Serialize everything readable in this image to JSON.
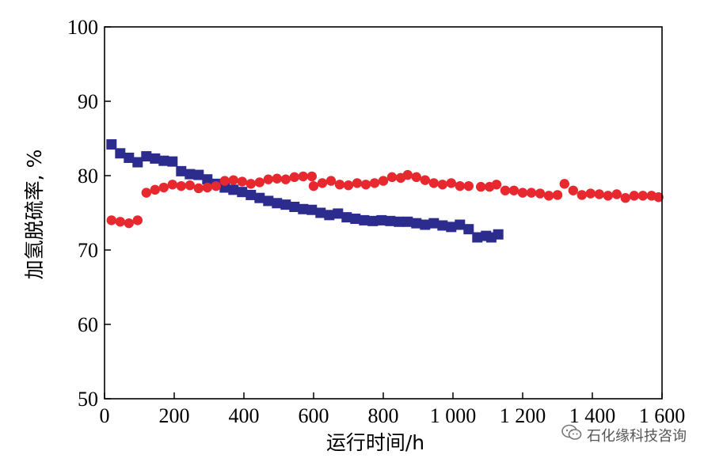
{
  "chart_data": {
    "type": "scatter",
    "title": "",
    "xlabel": "运行时间/h",
    "ylabel": "加氢脱硫率, %",
    "xlim": [
      0,
      1600
    ],
    "ylim": [
      50,
      100
    ],
    "xticks": [
      0,
      200,
      400,
      600,
      800,
      1000,
      1200,
      1400,
      1600
    ],
    "xtick_labels": [
      "0",
      "200",
      "400",
      "600",
      "800",
      "1 000",
      "1 200",
      "1 400",
      "1 600"
    ],
    "yticks": [
      50,
      60,
      70,
      80,
      90,
      100
    ],
    "ytick_labels": [
      "50",
      "60",
      "70",
      "80",
      "90",
      "100"
    ],
    "grid": false,
    "legend": "none",
    "series": [
      {
        "marker": "square",
        "color": "#2b2c8e",
        "points": [
          [
            20,
            84.2
          ],
          [
            45,
            83.0
          ],
          [
            70,
            82.4
          ],
          [
            95,
            81.8
          ],
          [
            120,
            82.6
          ],
          [
            145,
            82.3
          ],
          [
            170,
            82.0
          ],
          [
            195,
            81.9
          ],
          [
            220,
            80.6
          ],
          [
            245,
            80.2
          ],
          [
            270,
            80.1
          ],
          [
            295,
            79.5
          ],
          [
            320,
            78.9
          ],
          [
            345,
            78.4
          ],
          [
            370,
            78.1
          ],
          [
            395,
            77.8
          ],
          [
            420,
            77.4
          ],
          [
            445,
            77.0
          ],
          [
            470,
            76.6
          ],
          [
            495,
            76.3
          ],
          [
            520,
            76.1
          ],
          [
            545,
            75.8
          ],
          [
            570,
            75.5
          ],
          [
            595,
            75.4
          ],
          [
            620,
            75.0
          ],
          [
            645,
            74.7
          ],
          [
            670,
            74.9
          ],
          [
            695,
            74.4
          ],
          [
            720,
            74.2
          ],
          [
            745,
            74.0
          ],
          [
            770,
            73.9
          ],
          [
            795,
            74.0
          ],
          [
            820,
            73.9
          ],
          [
            845,
            73.8
          ],
          [
            870,
            73.8
          ],
          [
            895,
            73.6
          ],
          [
            920,
            73.4
          ],
          [
            945,
            73.6
          ],
          [
            970,
            73.3
          ],
          [
            995,
            73.1
          ],
          [
            1020,
            73.4
          ],
          [
            1045,
            72.8
          ],
          [
            1070,
            71.7
          ],
          [
            1095,
            71.9
          ],
          [
            1110,
            71.7
          ],
          [
            1130,
            72.1
          ]
        ]
      },
      {
        "marker": "circle",
        "color": "#e8282f",
        "points": [
          [
            20,
            74.0
          ],
          [
            45,
            73.8
          ],
          [
            70,
            73.6
          ],
          [
            95,
            74.0
          ],
          [
            120,
            77.7
          ],
          [
            145,
            78.1
          ],
          [
            170,
            78.4
          ],
          [
            195,
            78.8
          ],
          [
            220,
            78.6
          ],
          [
            245,
            78.7
          ],
          [
            270,
            78.3
          ],
          [
            295,
            78.4
          ],
          [
            320,
            78.6
          ],
          [
            345,
            79.3
          ],
          [
            370,
            79.4
          ],
          [
            395,
            79.2
          ],
          [
            420,
            78.9
          ],
          [
            445,
            79.1
          ],
          [
            470,
            79.5
          ],
          [
            495,
            79.6
          ],
          [
            520,
            79.5
          ],
          [
            545,
            79.8
          ],
          [
            570,
            79.9
          ],
          [
            595,
            79.9
          ],
          [
            600,
            78.6
          ],
          [
            625,
            79.0
          ],
          [
            650,
            79.3
          ],
          [
            675,
            78.8
          ],
          [
            700,
            78.7
          ],
          [
            725,
            79.0
          ],
          [
            750,
            78.8
          ],
          [
            775,
            79.0
          ],
          [
            800,
            79.3
          ],
          [
            825,
            79.8
          ],
          [
            850,
            79.7
          ],
          [
            870,
            80.1
          ],
          [
            895,
            79.8
          ],
          [
            920,
            79.4
          ],
          [
            945,
            79.0
          ],
          [
            970,
            78.8
          ],
          [
            995,
            79.0
          ],
          [
            1020,
            78.6
          ],
          [
            1045,
            78.6
          ],
          [
            1080,
            78.5
          ],
          [
            1105,
            78.5
          ],
          [
            1125,
            78.8
          ],
          [
            1150,
            78.0
          ],
          [
            1175,
            78.0
          ],
          [
            1200,
            77.7
          ],
          [
            1225,
            77.7
          ],
          [
            1250,
            77.6
          ],
          [
            1275,
            77.3
          ],
          [
            1300,
            77.4
          ],
          [
            1320,
            78.9
          ],
          [
            1345,
            78.0
          ],
          [
            1370,
            77.4
          ],
          [
            1395,
            77.6
          ],
          [
            1420,
            77.5
          ],
          [
            1445,
            77.3
          ],
          [
            1470,
            77.5
          ],
          [
            1495,
            77.0
          ],
          [
            1520,
            77.3
          ],
          [
            1545,
            77.3
          ],
          [
            1570,
            77.3
          ],
          [
            1590,
            77.1
          ]
        ]
      }
    ]
  },
  "watermark": {
    "icon": "wechat-icon",
    "text": "石化缘科技咨询"
  }
}
